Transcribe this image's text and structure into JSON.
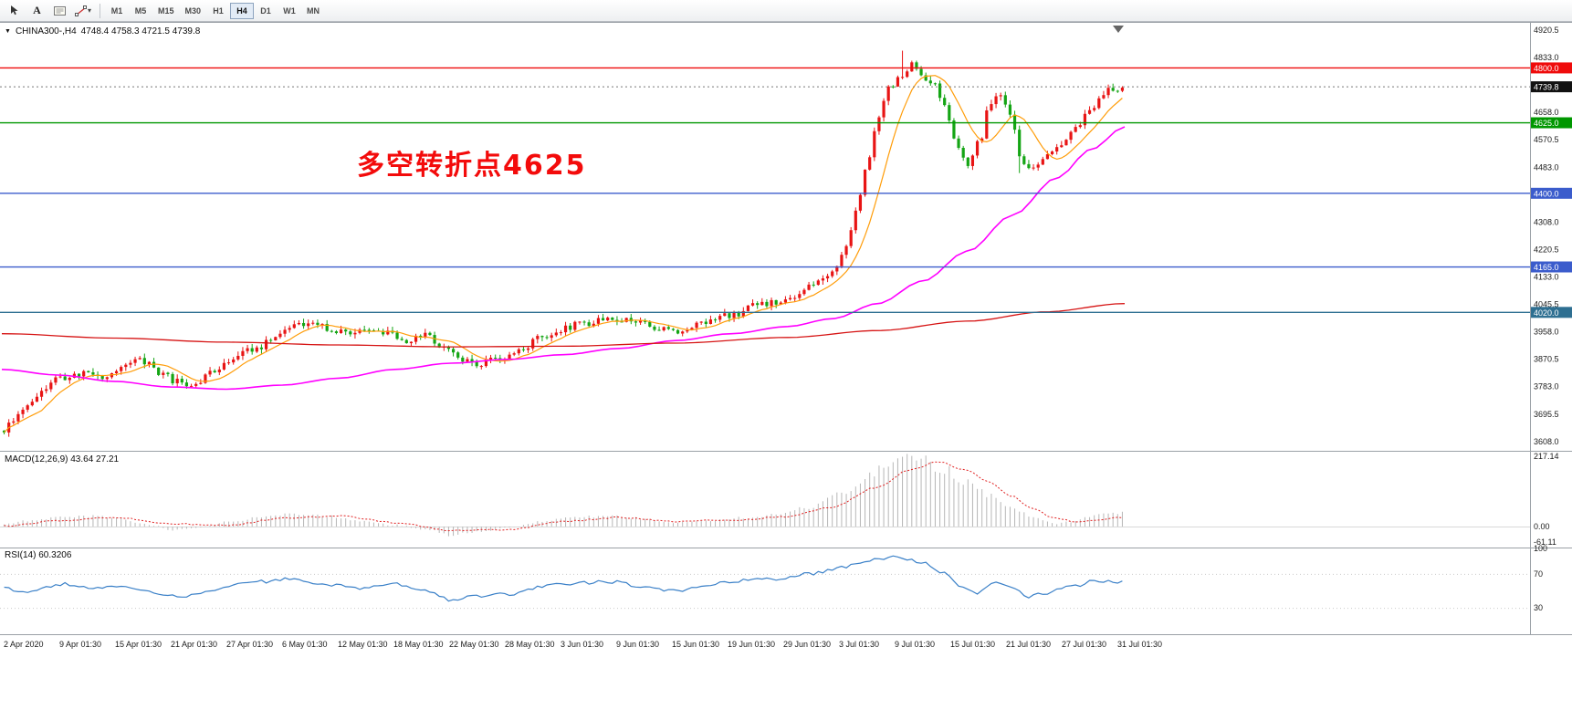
{
  "toolbar": {
    "text_tool_label": "A",
    "timeframes": [
      "M1",
      "M5",
      "M15",
      "M30",
      "H1",
      "H4",
      "D1",
      "W1",
      "MN"
    ],
    "active_timeframe": "H4"
  },
  "chart": {
    "symbol_label": "CHINA300-,H4",
    "ohlc_text": "4748.4 4758.3 4721.5 4739.8",
    "annotation": "多空转折点4625"
  },
  "icons": {
    "cursor-icon": "pointer-arrow",
    "label-icon": "text-frame",
    "trendline-icon": "diagonal-line-with-handles",
    "caret-down-icon": "▾",
    "collapse-triangle-icon": "▼",
    "chart-shift-marker": "▼"
  },
  "colors": {
    "bull": "#e81414",
    "bear": "#14a514",
    "ma_fast": "#ff9d0a",
    "ma_mid": "#ff00ff",
    "ma_slow": "#d61414",
    "macd_hist": "#b6b6b6",
    "macd_signal": "#e02020",
    "rsi_line": "#3a80c8",
    "annotation": "#f30b0b",
    "current_tag_bg": "#111111"
  },
  "chart_data": {
    "type": "candlestick",
    "symbol": "CHINA300-",
    "timeframe": "H4",
    "ohlc_current": {
      "open": "4748.4",
      "high": "4758.3",
      "low": "4721.5",
      "close": "4739.8"
    },
    "price_axis_ticks": [
      "4920.5",
      "4833.0",
      "4745.5",
      "4658.0",
      "4570.5",
      "4483.0",
      "4395.5",
      "4308.0",
      "4220.5",
      "4133.0",
      "4045.5",
      "3958.0",
      "3870.5",
      "3783.0",
      "3695.5",
      "3608.0"
    ],
    "horizontal_levels": [
      {
        "price": 4800.0,
        "label": "4800.0",
        "color": "#ef0b0b"
      },
      {
        "price": 4625.0,
        "label": "4625.0",
        "color": "#009700"
      },
      {
        "price": 4400.0,
        "label": "4400.0",
        "color": "#3b5ccc"
      },
      {
        "price": 4165.0,
        "label": "4165.0",
        "color": "#3b5ccc"
      },
      {
        "price": 4020.0,
        "label": "4020.0",
        "color": "#2e6f91"
      }
    ],
    "current_price": {
      "value": 4739.8,
      "label": "4739.8"
    },
    "time_axis": [
      "2 Apr 2020",
      "9 Apr 01:30",
      "15 Apr 01:30",
      "21 Apr 01:30",
      "27 Apr 01:30",
      "6 May 01:30",
      "12 May 01:30",
      "18 May 01:30",
      "22 May 01:30",
      "28 May 01:30",
      "3 Jun 01:30",
      "9 Jun 01:30",
      "15 Jun 01:30",
      "19 Jun 01:30",
      "29 Jun 01:30",
      "3 Jul 01:30",
      "9 Jul 01:30",
      "15 Jul 01:30",
      "21 Jul 01:30",
      "27 Jul 01:30",
      "31 Jul 01:30"
    ],
    "candles_count": 240,
    "ma_fast_window": 9,
    "price_path": [
      [
        0.0,
        3645
      ],
      [
        0.012,
        3690
      ],
      [
        0.03,
        3755
      ],
      [
        0.053,
        3815
      ],
      [
        0.075,
        3830
      ],
      [
        0.09,
        3805
      ],
      [
        0.103,
        3842
      ],
      [
        0.122,
        3868
      ],
      [
        0.14,
        3830
      ],
      [
        0.153,
        3800
      ],
      [
        0.168,
        3788
      ],
      [
        0.185,
        3825
      ],
      [
        0.203,
        3872
      ],
      [
        0.225,
        3905
      ],
      [
        0.245,
        3952
      ],
      [
        0.262,
        3978
      ],
      [
        0.278,
        3988
      ],
      [
        0.295,
        3958
      ],
      [
        0.31,
        3948
      ],
      [
        0.328,
        3972
      ],
      [
        0.345,
        3955
      ],
      [
        0.36,
        3928
      ],
      [
        0.378,
        3948
      ],
      [
        0.395,
        3905
      ],
      [
        0.408,
        3862
      ],
      [
        0.425,
        3858
      ],
      [
        0.445,
        3872
      ],
      [
        0.46,
        3892
      ],
      [
        0.478,
        3938
      ],
      [
        0.495,
        3962
      ],
      [
        0.515,
        3985
      ],
      [
        0.535,
        3992
      ],
      [
        0.553,
        3996
      ],
      [
        0.572,
        3988
      ],
      [
        0.59,
        3962
      ],
      [
        0.605,
        3955
      ],
      [
        0.622,
        3985
      ],
      [
        0.64,
        4005
      ],
      [
        0.655,
        4018
      ],
      [
        0.675,
        4042
      ],
      [
        0.695,
        4058
      ],
      [
        0.71,
        4078
      ],
      [
        0.725,
        4105
      ],
      [
        0.74,
        4150
      ],
      [
        0.752,
        4225
      ],
      [
        0.762,
        4340
      ],
      [
        0.772,
        4495
      ],
      [
        0.782,
        4650
      ],
      [
        0.792,
        4745
      ],
      [
        0.802,
        4775
      ],
      [
        0.812,
        4812
      ],
      [
        0.822,
        4768
      ],
      [
        0.832,
        4745
      ],
      [
        0.842,
        4672
      ],
      [
        0.852,
        4545
      ],
      [
        0.862,
        4488
      ],
      [
        0.872,
        4565
      ],
      [
        0.882,
        4695
      ],
      [
        0.89,
        4725
      ],
      [
        0.9,
        4655
      ],
      [
        0.91,
        4505
      ],
      [
        0.92,
        4475
      ],
      [
        0.932,
        4515
      ],
      [
        0.945,
        4548
      ],
      [
        0.958,
        4600
      ],
      [
        0.97,
        4665
      ],
      [
        0.982,
        4715
      ],
      [
        0.992,
        4735
      ],
      [
        1.0,
        4740
      ]
    ],
    "ma_mid_path": [
      [
        0,
        3838
      ],
      [
        0.05,
        3820
      ],
      [
        0.1,
        3800
      ],
      [
        0.15,
        3782
      ],
      [
        0.2,
        3775
      ],
      [
        0.25,
        3788
      ],
      [
        0.3,
        3810
      ],
      [
        0.35,
        3838
      ],
      [
        0.4,
        3858
      ],
      [
        0.45,
        3870
      ],
      [
        0.5,
        3885
      ],
      [
        0.55,
        3905
      ],
      [
        0.6,
        3930
      ],
      [
        0.65,
        3952
      ],
      [
        0.7,
        3975
      ],
      [
        0.74,
        4000
      ],
      [
        0.78,
        4048
      ],
      [
        0.82,
        4120
      ],
      [
        0.86,
        4215
      ],
      [
        0.9,
        4330
      ],
      [
        0.94,
        4450
      ],
      [
        0.97,
        4540
      ],
      [
        1.0,
        4612
      ]
    ],
    "ma_slow_path": [
      [
        0,
        3952
      ],
      [
        0.1,
        3938
      ],
      [
        0.2,
        3925
      ],
      [
        0.3,
        3916
      ],
      [
        0.4,
        3910
      ],
      [
        0.5,
        3912
      ],
      [
        0.6,
        3922
      ],
      [
        0.7,
        3940
      ],
      [
        0.78,
        3962
      ],
      [
        0.86,
        3992
      ],
      [
        0.93,
        4022
      ],
      [
        1.0,
        4048
      ]
    ],
    "macd": {
      "label": "MACD(12,26,9) 43.64 27.21",
      "values": [
        43.64,
        27.21
      ],
      "scale": [
        "217.14",
        "0.00",
        "-61.11"
      ],
      "max": 217.14,
      "min": -61.11,
      "path": [
        [
          0,
          8
        ],
        [
          0.02,
          18
        ],
        [
          0.05,
          30
        ],
        [
          0.08,
          34
        ],
        [
          0.1,
          26
        ],
        [
          0.13,
          6
        ],
        [
          0.15,
          -12
        ],
        [
          0.17,
          -6
        ],
        [
          0.2,
          14
        ],
        [
          0.23,
          30
        ],
        [
          0.26,
          38
        ],
        [
          0.29,
          32
        ],
        [
          0.32,
          18
        ],
        [
          0.35,
          4
        ],
        [
          0.38,
          -10
        ],
        [
          0.4,
          -26
        ],
        [
          0.42,
          -18
        ],
        [
          0.45,
          -4
        ],
        [
          0.48,
          14
        ],
        [
          0.51,
          28
        ],
        [
          0.54,
          32
        ],
        [
          0.57,
          24
        ],
        [
          0.6,
          12
        ],
        [
          0.63,
          18
        ],
        [
          0.66,
          26
        ],
        [
          0.69,
          36
        ],
        [
          0.72,
          60
        ],
        [
          0.75,
          105
        ],
        [
          0.77,
          150
        ],
        [
          0.79,
          185
        ],
        [
          0.805,
          210
        ],
        [
          0.82,
          205
        ],
        [
          0.84,
          178
        ],
        [
          0.86,
          140
        ],
        [
          0.88,
          100
        ],
        [
          0.9,
          62
        ],
        [
          0.92,
          30
        ],
        [
          0.94,
          10
        ],
        [
          0.955,
          14
        ],
        [
          0.97,
          28
        ],
        [
          0.985,
          40
        ],
        [
          1.0,
          43.64
        ]
      ],
      "signal_path": [
        [
          0,
          2
        ],
        [
          0.05,
          18
        ],
        [
          0.1,
          28
        ],
        [
          0.15,
          8
        ],
        [
          0.2,
          4
        ],
        [
          0.25,
          26
        ],
        [
          0.3,
          32
        ],
        [
          0.35,
          12
        ],
        [
          0.4,
          -12
        ],
        [
          0.45,
          -10
        ],
        [
          0.5,
          16
        ],
        [
          0.55,
          28
        ],
        [
          0.6,
          16
        ],
        [
          0.65,
          20
        ],
        [
          0.7,
          30
        ],
        [
          0.74,
          60
        ],
        [
          0.78,
          120
        ],
        [
          0.81,
          175
        ],
        [
          0.835,
          200
        ],
        [
          0.86,
          175
        ],
        [
          0.88,
          138
        ],
        [
          0.9,
          95
        ],
        [
          0.92,
          55
        ],
        [
          0.94,
          25
        ],
        [
          0.96,
          14
        ],
        [
          0.98,
          22
        ],
        [
          1.0,
          27.21
        ]
      ]
    },
    "rsi": {
      "label": "RSI(14) 60.3206",
      "value": 60.3206,
      "scale": [
        "100",
        "70",
        "30"
      ],
      "levels": [
        70,
        30
      ],
      "path": [
        [
          0,
          54
        ],
        [
          0.02,
          48
        ],
        [
          0.05,
          58
        ],
        [
          0.08,
          53
        ],
        [
          0.1,
          56
        ],
        [
          0.13,
          49
        ],
        [
          0.155,
          43
        ],
        [
          0.175,
          47
        ],
        [
          0.2,
          56
        ],
        [
          0.23,
          61
        ],
        [
          0.26,
          64
        ],
        [
          0.29,
          57
        ],
        [
          0.32,
          53
        ],
        [
          0.35,
          58
        ],
        [
          0.375,
          50
        ],
        [
          0.4,
          39
        ],
        [
          0.42,
          43
        ],
        [
          0.45,
          46
        ],
        [
          0.48,
          55
        ],
        [
          0.51,
          59
        ],
        [
          0.54,
          61
        ],
        [
          0.57,
          56
        ],
        [
          0.6,
          50
        ],
        [
          0.63,
          58
        ],
        [
          0.66,
          62
        ],
        [
          0.69,
          64
        ],
        [
          0.72,
          70
        ],
        [
          0.75,
          78
        ],
        [
          0.775,
          86
        ],
        [
          0.8,
          90
        ],
        [
          0.82,
          83
        ],
        [
          0.84,
          72
        ],
        [
          0.855,
          57
        ],
        [
          0.868,
          47
        ],
        [
          0.885,
          61
        ],
        [
          0.9,
          56
        ],
        [
          0.915,
          43
        ],
        [
          0.93,
          47
        ],
        [
          0.945,
          53
        ],
        [
          0.96,
          56
        ],
        [
          0.975,
          63
        ],
        [
          0.99,
          61
        ],
        [
          1.0,
          60.32
        ]
      ]
    }
  }
}
